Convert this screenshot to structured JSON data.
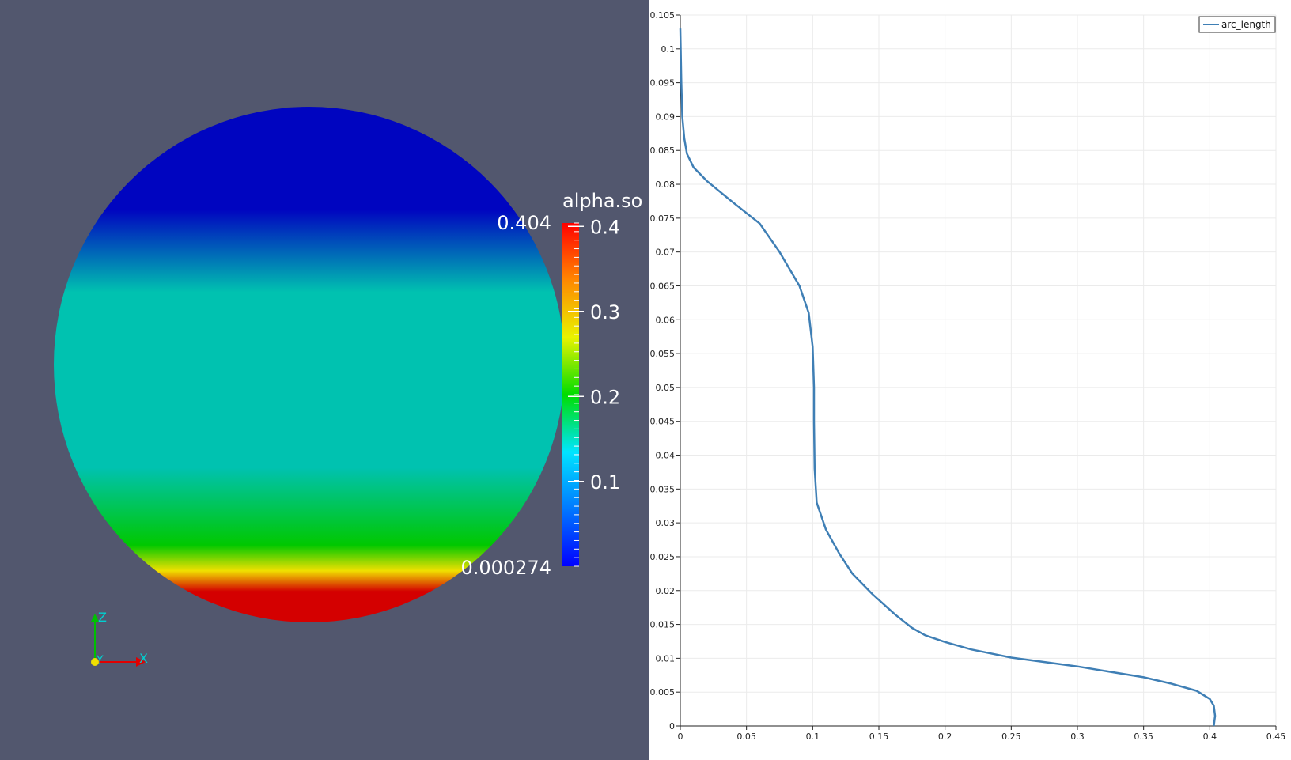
{
  "render_view": {
    "colorbar": {
      "title": "alpha.so",
      "max_label": "0.404",
      "min_label": "0.000274",
      "ticks": [
        "0.4",
        "0.3",
        "0.2",
        "0.1"
      ],
      "tick_values": [
        0.4,
        0.3,
        0.2,
        0.1
      ],
      "range": [
        0.000274,
        0.404
      ],
      "colors": [
        "#0000ff",
        "#0078ff",
        "#00e5ff",
        "#00dd00",
        "#e9f300",
        "#ff8800",
        "#ff0000"
      ]
    },
    "axes_triad": {
      "z": "Z",
      "y": "Y",
      "x": "X"
    },
    "sphere_colors": {
      "top": "#0005c0",
      "mid": "#00c2b0",
      "lower": "#00c800",
      "band": "#f0e000",
      "bottom": "#d40000"
    }
  },
  "chart_data": {
    "type": "line",
    "title": "",
    "xlabel": "",
    "ylabel": "",
    "xlim": [
      0,
      0.45
    ],
    "ylim": [
      0,
      0.105
    ],
    "grid": true,
    "legend_position": "top-right",
    "x_ticks": [
      "0",
      "0.05",
      "0.1",
      "0.15",
      "0.2",
      "0.25",
      "0.3",
      "0.35",
      "0.4",
      "0.45"
    ],
    "y_ticks": [
      "0",
      "0.005",
      "0.01",
      "0.015",
      "0.02",
      "0.025",
      "0.03",
      "0.035",
      "0.04",
      "0.045",
      "0.05",
      "0.055",
      "0.06",
      "0.065",
      "0.07",
      "0.075",
      "0.08",
      "0.085",
      "0.09",
      "0.095",
      "0.1",
      "0.105"
    ],
    "series": [
      {
        "name": "arc_length",
        "color": "#3f7fb5",
        "points": [
          [
            0.403,
            0.0
          ],
          [
            0.404,
            0.0015
          ],
          [
            0.403,
            0.003
          ],
          [
            0.4,
            0.004
          ],
          [
            0.39,
            0.0052
          ],
          [
            0.37,
            0.0063
          ],
          [
            0.35,
            0.0072
          ],
          [
            0.3,
            0.0088
          ],
          [
            0.25,
            0.0101
          ],
          [
            0.22,
            0.0113
          ],
          [
            0.2,
            0.0124
          ],
          [
            0.185,
            0.0134
          ],
          [
            0.175,
            0.0145
          ],
          [
            0.162,
            0.0165
          ],
          [
            0.145,
            0.0195
          ],
          [
            0.13,
            0.0225
          ],
          [
            0.12,
            0.0255
          ],
          [
            0.11,
            0.029
          ],
          [
            0.103,
            0.033
          ],
          [
            0.1015,
            0.038
          ],
          [
            0.101,
            0.045
          ],
          [
            0.101,
            0.05
          ],
          [
            0.1,
            0.056
          ],
          [
            0.097,
            0.061
          ],
          [
            0.09,
            0.065
          ],
          [
            0.075,
            0.07
          ],
          [
            0.06,
            0.0742
          ],
          [
            0.04,
            0.0773
          ],
          [
            0.02,
            0.0805
          ],
          [
            0.01,
            0.0825
          ],
          [
            0.005,
            0.0845
          ],
          [
            0.003,
            0.0868
          ],
          [
            0.0015,
            0.09
          ],
          [
            0.0008,
            0.095
          ],
          [
            0.0003,
            0.1
          ],
          [
            0.0,
            0.103
          ]
        ]
      }
    ]
  }
}
